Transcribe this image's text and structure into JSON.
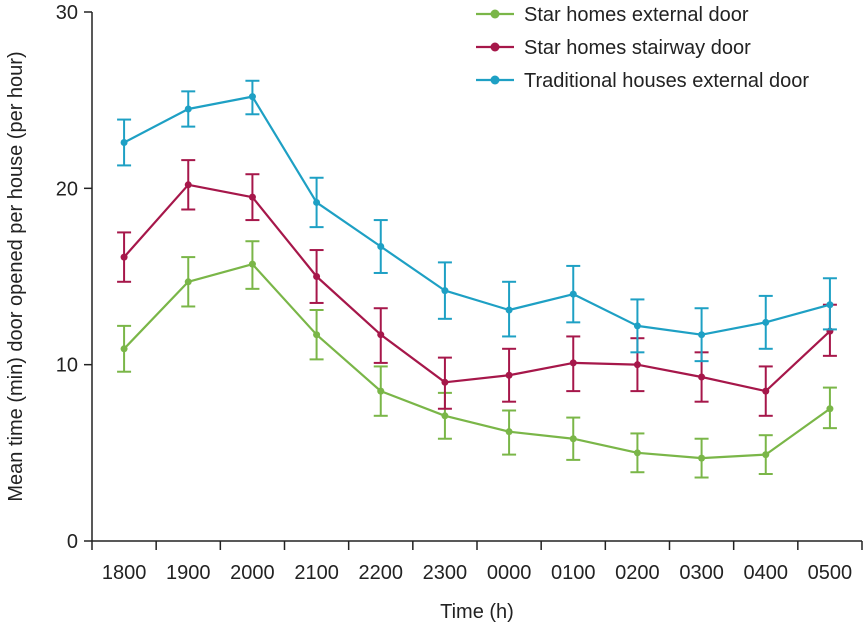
{
  "chart_data": {
    "type": "line",
    "title": "",
    "xlabel": "Time (h)",
    "ylabel": "Mean time (min) door opened per house (per hour)",
    "categories": [
      "1800",
      "1900",
      "2000",
      "2100",
      "2200",
      "2300",
      "0000",
      "0100",
      "0200",
      "0300",
      "0400",
      "0500"
    ],
    "ylim": [
      0,
      30
    ],
    "yticks": [
      0,
      10,
      20,
      30
    ],
    "grid": false,
    "legend_position": "top-right",
    "series": [
      {
        "name": "Star homes external door",
        "color": "#7ab648",
        "values": [
          10.9,
          14.7,
          15.7,
          11.7,
          8.5,
          7.1,
          6.2,
          5.8,
          5.0,
          4.7,
          4.9,
          7.5
        ],
        "err_low": [
          9.6,
          13.3,
          14.3,
          10.3,
          7.1,
          5.8,
          4.9,
          4.6,
          3.9,
          3.6,
          3.8,
          6.4
        ],
        "err_high": [
          12.2,
          16.1,
          17.0,
          13.1,
          9.9,
          8.4,
          7.4,
          7.0,
          6.1,
          5.8,
          6.0,
          8.7
        ]
      },
      {
        "name": "Star homes stairway door",
        "color": "#a6174a",
        "values": [
          16.1,
          20.2,
          19.5,
          15.0,
          11.7,
          9.0,
          9.4,
          10.1,
          10.0,
          9.3,
          8.5,
          11.9
        ],
        "err_low": [
          14.7,
          18.8,
          18.2,
          13.5,
          10.1,
          7.5,
          7.9,
          8.5,
          8.5,
          7.9,
          7.1,
          10.5
        ],
        "err_high": [
          17.5,
          21.6,
          20.8,
          16.5,
          13.2,
          10.4,
          10.9,
          11.6,
          11.5,
          10.7,
          9.9,
          13.4
        ]
      },
      {
        "name": "Traditional houses external door",
        "color": "#1ea0c4",
        "values": [
          22.6,
          24.5,
          25.2,
          19.2,
          16.7,
          14.2,
          13.1,
          14.0,
          12.2,
          11.7,
          12.4,
          13.4
        ],
        "err_low": [
          21.3,
          23.5,
          24.2,
          17.8,
          15.2,
          12.6,
          11.6,
          12.4,
          10.7,
          10.2,
          10.9,
          12.0
        ],
        "err_high": [
          23.9,
          25.5,
          26.1,
          20.6,
          18.2,
          15.8,
          14.7,
          15.6,
          13.7,
          13.2,
          13.9,
          14.9
        ]
      }
    ]
  }
}
